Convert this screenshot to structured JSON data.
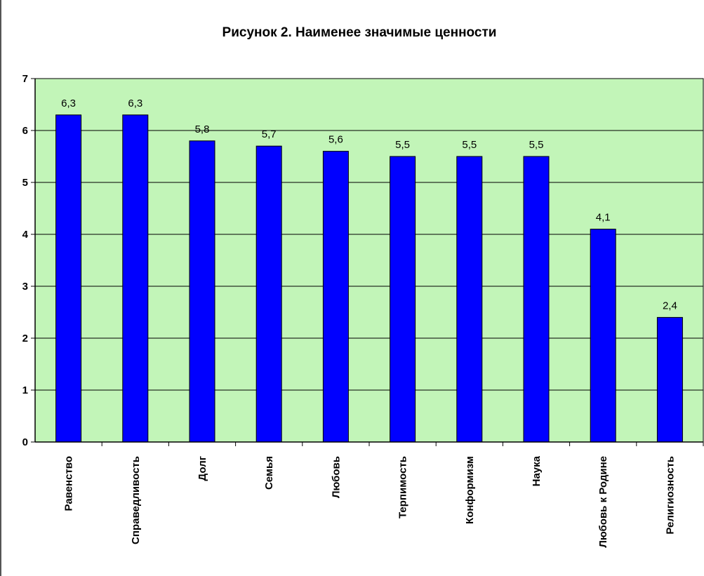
{
  "chart_data": {
    "type": "bar",
    "title": "Рисунок 2. Наименее значимые ценности",
    "xlabel": "",
    "ylabel": "",
    "categories": [
      "Равенство",
      "Справедливость",
      "Долг",
      "Семья",
      "Любовь",
      "Терпимость",
      "Конформизм",
      "Наука",
      "Любовь к Родине",
      "Религиозность"
    ],
    "values": [
      6.3,
      6.3,
      5.8,
      5.7,
      5.6,
      5.5,
      5.5,
      5.5,
      4.1,
      2.4
    ],
    "value_labels": [
      "6,3",
      "6,3",
      "5,8",
      "5,7",
      "5,6",
      "5,5",
      "5,5",
      "5,5",
      "4,1",
      "2,4"
    ],
    "yticks": [
      "0",
      "1",
      "2",
      "3",
      "4",
      "5",
      "6",
      "7"
    ],
    "ylim": [
      0,
      7
    ],
    "grid": true,
    "legend": "none",
    "colors": {
      "plot_background": "#c2f5b8",
      "bar": "#0000ff",
      "bar_outline": "#000000",
      "gridline": "#000000",
      "axis": "#000000"
    }
  }
}
